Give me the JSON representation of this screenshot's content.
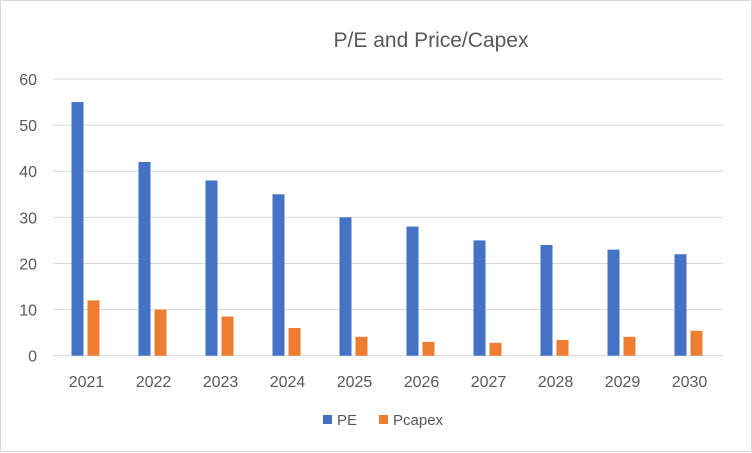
{
  "chart_data": {
    "type": "bar",
    "title": "P/E and Price/Capex",
    "categories": [
      "2021",
      "2022",
      "2023",
      "2024",
      "2025",
      "2026",
      "2027",
      "2028",
      "2029",
      "2030"
    ],
    "series": [
      {
        "name": "PE",
        "color": "#4472C4",
        "values": [
          55,
          42,
          38,
          35,
          30,
          28,
          25,
          24,
          23,
          22
        ]
      },
      {
        "name": "Pcapex",
        "color": "#ED7D31",
        "values": [
          12,
          10,
          8.5,
          6,
          4.1,
          3,
          2.8,
          3.4,
          4.1,
          5.4
        ]
      }
    ],
    "ylim": [
      0,
      60
    ],
    "yticks": [
      0,
      10,
      20,
      30,
      40,
      50,
      60
    ],
    "grid": true,
    "legend": "bottom"
  }
}
